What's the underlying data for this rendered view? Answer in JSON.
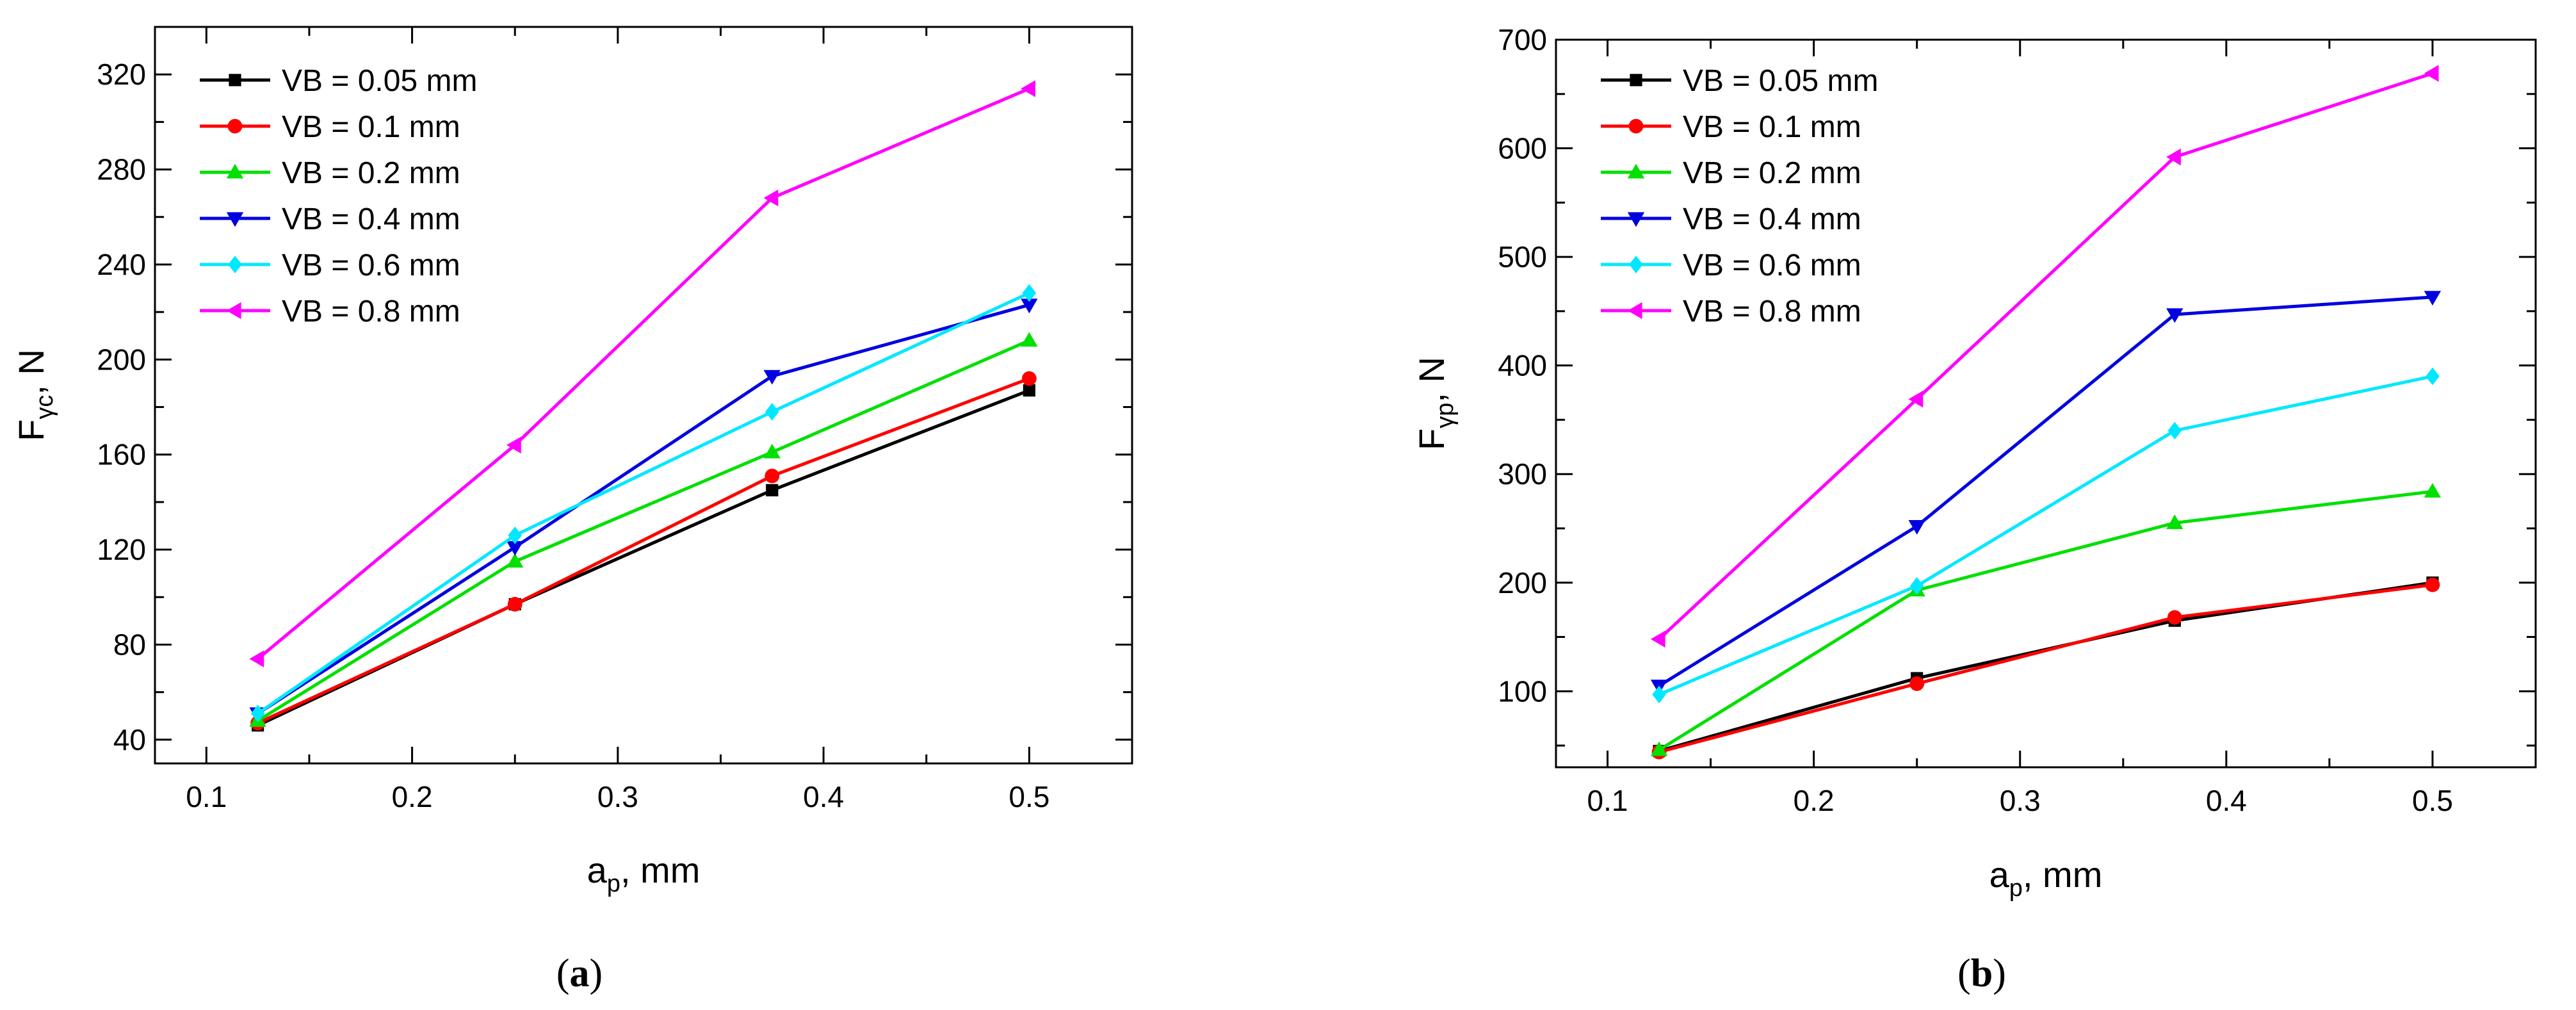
{
  "chart_data": [
    {
      "type": "line",
      "panel": "a",
      "caption_open": "(",
      "caption_letter": "a",
      "caption_close": ")",
      "ylabel_main": "F",
      "ylabel_sub": "γc",
      "ylabel_rest": ", N",
      "xlabel_main": "a",
      "xlabel_sub": "p",
      "xlabel_rest": ", mm",
      "xlim": [
        0.075,
        0.55
      ],
      "ylim": [
        30,
        340
      ],
      "xticks": [
        0.1,
        0.2,
        0.3,
        0.4,
        0.5
      ],
      "xtick_labels": [
        "0.1",
        "0.2",
        "0.3",
        "0.4",
        "0.5"
      ],
      "yticks": [
        40,
        80,
        120,
        160,
        200,
        240,
        280,
        320
      ],
      "ytick_labels": [
        "40",
        "80",
        "120",
        "160",
        "200",
        "240",
        "280",
        "320"
      ],
      "x": [
        0.125,
        0.25,
        0.375,
        0.5
      ],
      "series": [
        {
          "name": "VB = 0.05 mm",
          "color": "#000000",
          "marker": "square",
          "values": [
            46,
            97,
            145,
            187
          ]
        },
        {
          "name": "VB = 0.1 mm",
          "color": "#ff0000",
          "marker": "circle",
          "values": [
            47,
            97,
            151,
            192
          ]
        },
        {
          "name": "VB = 0.2 mm",
          "color": "#00e000",
          "marker": "triangle-up",
          "values": [
            48,
            115,
            161,
            208
          ]
        },
        {
          "name": "VB = 0.4 mm",
          "color": "#0000e0",
          "marker": "triangle-down",
          "values": [
            51,
            121,
            193,
            223
          ]
        },
        {
          "name": "VB = 0.6 mm",
          "color": "#00e8ff",
          "marker": "diamond",
          "values": [
            51,
            126,
            178,
            228
          ]
        },
        {
          "name": "VB = 0.8 mm",
          "color": "#ff00ff",
          "marker": "triangle-left",
          "values": [
            74,
            164,
            268,
            314
          ]
        }
      ]
    },
    {
      "type": "line",
      "panel": "b",
      "caption_open": "(",
      "caption_letter": "b",
      "caption_close": ")",
      "ylabel_main": "F",
      "ylabel_sub": "γp",
      "ylabel_rest": ", N",
      "xlabel_main": "a",
      "xlabel_sub": "p",
      "xlabel_rest": ", mm",
      "xlim": [
        0.075,
        0.55
      ],
      "ylim": [
        30,
        700
      ],
      "xticks": [
        0.1,
        0.2,
        0.3,
        0.4,
        0.5
      ],
      "xtick_labels": [
        "0.1",
        "0.2",
        "0.3",
        "0.4",
        "0.5"
      ],
      "yticks": [
        100,
        200,
        300,
        400,
        500,
        600,
        700
      ],
      "ytick_labels": [
        "100",
        "200",
        "300",
        "400",
        "500",
        "600",
        "700"
      ],
      "x": [
        0.125,
        0.25,
        0.375,
        0.5
      ],
      "series": [
        {
          "name": "VB = 0.05 mm",
          "color": "#000000",
          "marker": "square",
          "values": [
            45,
            112,
            165,
            200
          ]
        },
        {
          "name": "VB = 0.1 mm",
          "color": "#ff0000",
          "marker": "circle",
          "values": [
            44,
            107,
            168,
            198
          ]
        },
        {
          "name": "VB = 0.2 mm",
          "color": "#00e000",
          "marker": "triangle-up",
          "values": [
            46,
            193,
            255,
            284
          ]
        },
        {
          "name": "VB = 0.4 mm",
          "color": "#0000e0",
          "marker": "triangle-down",
          "values": [
            105,
            252,
            447,
            463
          ]
        },
        {
          "name": "VB = 0.6 mm",
          "color": "#00e8ff",
          "marker": "diamond",
          "values": [
            97,
            197,
            340,
            390
          ]
        },
        {
          "name": "VB = 0.8 mm",
          "color": "#ff00ff",
          "marker": "triangle-left",
          "values": [
            148,
            369,
            592,
            669
          ]
        }
      ]
    }
  ]
}
